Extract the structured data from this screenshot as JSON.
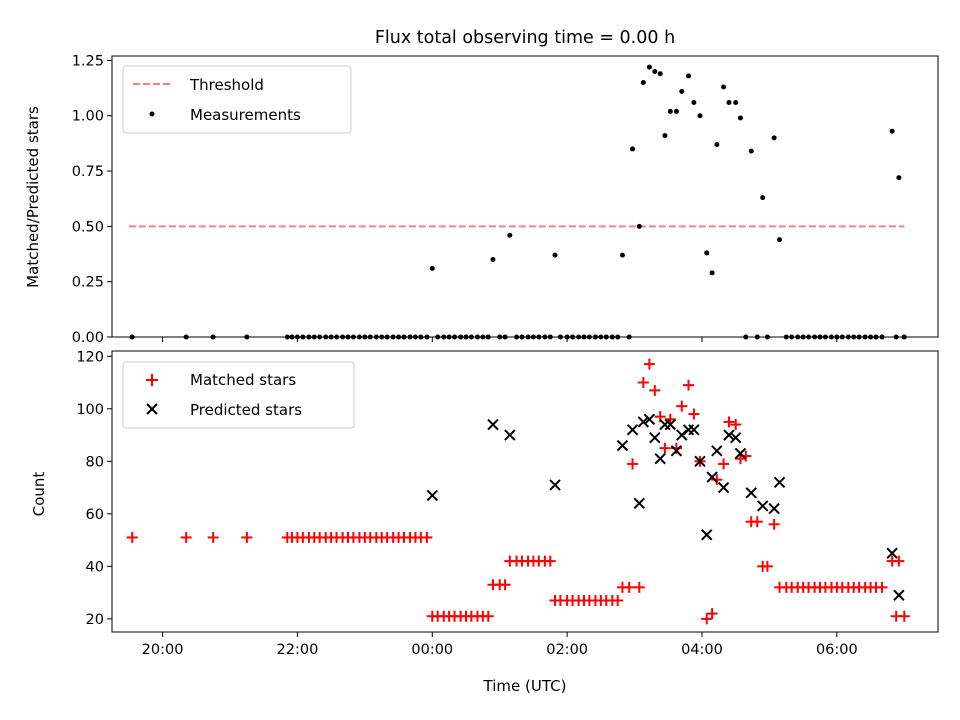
{
  "chart_data": [
    {
      "type": "scatter",
      "title": "Flux total observing time = 0.00 h",
      "xlabel": "",
      "ylabel": "Matched/Predicted stars",
      "xlim": [
        -4.75,
        7.5
      ],
      "ylim": [
        0,
        1.27
      ],
      "y_ticks": [
        "0.00",
        "0.25",
        "0.50",
        "0.75",
        "1.00",
        "1.25"
      ],
      "grid": false,
      "legend_position": "upper-left",
      "threshold": {
        "name": "Threshold",
        "value": 0.5,
        "x_range": [
          -4.5,
          7.0
        ],
        "color": "#ff7f7f"
      },
      "series": [
        {
          "name": "Measurements",
          "color": "#000000",
          "points": [
            [
              -4.45,
              0
            ],
            [
              -3.65,
              0
            ],
            [
              -3.25,
              0
            ],
            [
              -2.75,
              0
            ],
            [
              -2.15,
              0
            ],
            [
              -2.08,
              0
            ],
            [
              -2.0,
              0
            ],
            [
              -1.92,
              0
            ],
            [
              -1.83,
              0
            ],
            [
              -1.75,
              0
            ],
            [
              -1.67,
              0
            ],
            [
              -1.58,
              0
            ],
            [
              -1.5,
              0
            ],
            [
              -1.42,
              0
            ],
            [
              -1.33,
              0
            ],
            [
              -1.25,
              0
            ],
            [
              -1.17,
              0
            ],
            [
              -1.08,
              0
            ],
            [
              -1.0,
              0
            ],
            [
              -0.92,
              0
            ],
            [
              -0.83,
              0
            ],
            [
              -0.75,
              0
            ],
            [
              -0.67,
              0
            ],
            [
              -0.58,
              0
            ],
            [
              -0.5,
              0
            ],
            [
              -0.42,
              0
            ],
            [
              -0.33,
              0
            ],
            [
              -0.25,
              0
            ],
            [
              -0.17,
              0
            ],
            [
              -0.08,
              0
            ],
            [
              0.0,
              0.31
            ],
            [
              0.08,
              0
            ],
            [
              0.17,
              0
            ],
            [
              0.25,
              0
            ],
            [
              0.33,
              0
            ],
            [
              0.42,
              0
            ],
            [
              0.5,
              0
            ],
            [
              0.58,
              0
            ],
            [
              0.67,
              0
            ],
            [
              0.75,
              0
            ],
            [
              0.83,
              0
            ],
            [
              0.9,
              0.35
            ],
            [
              1.0,
              0
            ],
            [
              1.08,
              0
            ],
            [
              1.15,
              0.46
            ],
            [
              1.25,
              0
            ],
            [
              1.33,
              0
            ],
            [
              1.42,
              0
            ],
            [
              1.5,
              0
            ],
            [
              1.58,
              0
            ],
            [
              1.67,
              0
            ],
            [
              1.75,
              0
            ],
            [
              1.82,
              0.37
            ],
            [
              1.9,
              0
            ],
            [
              2.0,
              0
            ],
            [
              2.08,
              0
            ],
            [
              2.17,
              0
            ],
            [
              2.25,
              0
            ],
            [
              2.33,
              0
            ],
            [
              2.42,
              0
            ],
            [
              2.5,
              0
            ],
            [
              2.58,
              0
            ],
            [
              2.67,
              0
            ],
            [
              2.75,
              0
            ],
            [
              2.82,
              0.37
            ],
            [
              2.92,
              0
            ],
            [
              2.97,
              0.85
            ],
            [
              3.07,
              0.5
            ],
            [
              3.13,
              1.15
            ],
            [
              3.22,
              1.22
            ],
            [
              3.3,
              1.2
            ],
            [
              3.38,
              1.19
            ],
            [
              3.45,
              0.91
            ],
            [
              3.53,
              1.02
            ],
            [
              3.62,
              1.02
            ],
            [
              3.7,
              1.11
            ],
            [
              3.8,
              1.18
            ],
            [
              3.88,
              1.06
            ],
            [
              3.97,
              1.0
            ],
            [
              4.07,
              0.38
            ],
            [
              4.15,
              0.29
            ],
            [
              4.22,
              0.87
            ],
            [
              4.32,
              1.13
            ],
            [
              4.4,
              1.06
            ],
            [
              4.5,
              1.06
            ],
            [
              4.57,
              0.99
            ],
            [
              4.65,
              0
            ],
            [
              4.73,
              0.84
            ],
            [
              4.82,
              0
            ],
            [
              4.9,
              0.63
            ],
            [
              4.97,
              0
            ],
            [
              5.07,
              0.9
            ],
            [
              5.15,
              0.44
            ],
            [
              5.25,
              0
            ],
            [
              5.33,
              0
            ],
            [
              5.42,
              0
            ],
            [
              5.5,
              0
            ],
            [
              5.58,
              0
            ],
            [
              5.67,
              0
            ],
            [
              5.75,
              0
            ],
            [
              5.83,
              0
            ],
            [
              5.92,
              0
            ],
            [
              6.0,
              0
            ],
            [
              6.08,
              0
            ],
            [
              6.17,
              0
            ],
            [
              6.25,
              0
            ],
            [
              6.33,
              0
            ],
            [
              6.42,
              0
            ],
            [
              6.5,
              0
            ],
            [
              6.58,
              0
            ],
            [
              6.67,
              0
            ],
            [
              6.82,
              0.93
            ],
            [
              6.88,
              0
            ],
            [
              6.92,
              0.72
            ],
            [
              7.0,
              0
            ]
          ]
        }
      ]
    },
    {
      "type": "scatter",
      "title": "",
      "xlabel": "Time (UTC)",
      "ylabel": "Count",
      "xlim": [
        -4.75,
        7.5
      ],
      "ylim": [
        15,
        122
      ],
      "x_ticks": [
        {
          "value": -4.0,
          "label": "20:00"
        },
        {
          "value": -2.0,
          "label": "22:00"
        },
        {
          "value": 0.0,
          "label": "00:00"
        },
        {
          "value": 2.0,
          "label": "02:00"
        },
        {
          "value": 4.0,
          "label": "04:00"
        },
        {
          "value": 6.0,
          "label": "06:00"
        }
      ],
      "y_ticks": [
        "20",
        "40",
        "60",
        "80",
        "100",
        "120"
      ],
      "grid": false,
      "legend_position": "upper-left",
      "series": [
        {
          "name": "Matched stars",
          "color": "#ff0000",
          "marker": "plus",
          "points": [
            [
              -4.45,
              51
            ],
            [
              -3.65,
              51
            ],
            [
              -3.25,
              51
            ],
            [
              -2.75,
              51
            ],
            [
              -2.15,
              51
            ],
            [
              -2.08,
              51
            ],
            [
              -2.0,
              51
            ],
            [
              -1.92,
              51
            ],
            [
              -1.83,
              51
            ],
            [
              -1.75,
              51
            ],
            [
              -1.67,
              51
            ],
            [
              -1.58,
              51
            ],
            [
              -1.5,
              51
            ],
            [
              -1.42,
              51
            ],
            [
              -1.33,
              51
            ],
            [
              -1.25,
              51
            ],
            [
              -1.17,
              51
            ],
            [
              -1.08,
              51
            ],
            [
              -1.0,
              51
            ],
            [
              -0.92,
              51
            ],
            [
              -0.83,
              51
            ],
            [
              -0.75,
              51
            ],
            [
              -0.67,
              51
            ],
            [
              -0.58,
              51
            ],
            [
              -0.5,
              51
            ],
            [
              -0.42,
              51
            ],
            [
              -0.33,
              51
            ],
            [
              -0.25,
              51
            ],
            [
              -0.17,
              51
            ],
            [
              -0.08,
              51
            ],
            [
              0.0,
              21
            ],
            [
              0.08,
              21
            ],
            [
              0.17,
              21
            ],
            [
              0.25,
              21
            ],
            [
              0.33,
              21
            ],
            [
              0.42,
              21
            ],
            [
              0.5,
              21
            ],
            [
              0.58,
              21
            ],
            [
              0.67,
              21
            ],
            [
              0.75,
              21
            ],
            [
              0.83,
              21
            ],
            [
              0.9,
              33
            ],
            [
              1.0,
              33
            ],
            [
              1.08,
              33
            ],
            [
              1.15,
              42
            ],
            [
              1.25,
              42
            ],
            [
              1.33,
              42
            ],
            [
              1.42,
              42
            ],
            [
              1.5,
              42
            ],
            [
              1.58,
              42
            ],
            [
              1.67,
              42
            ],
            [
              1.75,
              42
            ],
            [
              1.82,
              27
            ],
            [
              1.9,
              27
            ],
            [
              2.0,
              27
            ],
            [
              2.08,
              27
            ],
            [
              2.17,
              27
            ],
            [
              2.25,
              27
            ],
            [
              2.33,
              27
            ],
            [
              2.42,
              27
            ],
            [
              2.5,
              27
            ],
            [
              2.58,
              27
            ],
            [
              2.67,
              27
            ],
            [
              2.75,
              27
            ],
            [
              2.82,
              32
            ],
            [
              2.92,
              32
            ],
            [
              2.97,
              79
            ],
            [
              3.07,
              32
            ],
            [
              3.13,
              110
            ],
            [
              3.22,
              117
            ],
            [
              3.3,
              107
            ],
            [
              3.38,
              97
            ],
            [
              3.45,
              85
            ],
            [
              3.53,
              96
            ],
            [
              3.62,
              85
            ],
            [
              3.7,
              101
            ],
            [
              3.8,
              109
            ],
            [
              3.88,
              98
            ],
            [
              3.97,
              80
            ],
            [
              4.07,
              20
            ],
            [
              4.15,
              22
            ],
            [
              4.22,
              73
            ],
            [
              4.32,
              79
            ],
            [
              4.4,
              95
            ],
            [
              4.5,
              94
            ],
            [
              4.57,
              81
            ],
            [
              4.65,
              82
            ],
            [
              4.73,
              57
            ],
            [
              4.82,
              57
            ],
            [
              4.9,
              40
            ],
            [
              4.97,
              40
            ],
            [
              5.07,
              56
            ],
            [
              5.15,
              32
            ],
            [
              5.25,
              32
            ],
            [
              5.33,
              32
            ],
            [
              5.42,
              32
            ],
            [
              5.5,
              32
            ],
            [
              5.58,
              32
            ],
            [
              5.67,
              32
            ],
            [
              5.75,
              32
            ],
            [
              5.83,
              32
            ],
            [
              5.92,
              32
            ],
            [
              6.0,
              32
            ],
            [
              6.08,
              32
            ],
            [
              6.17,
              32
            ],
            [
              6.25,
              32
            ],
            [
              6.33,
              32
            ],
            [
              6.42,
              32
            ],
            [
              6.5,
              32
            ],
            [
              6.58,
              32
            ],
            [
              6.67,
              32
            ],
            [
              6.82,
              42
            ],
            [
              6.88,
              21
            ],
            [
              6.92,
              42
            ],
            [
              7.0,
              21
            ]
          ]
        },
        {
          "name": "Predicted stars",
          "color": "#000000",
          "marker": "x",
          "points": [
            [
              0.0,
              67
            ],
            [
              0.9,
              94
            ],
            [
              1.15,
              90
            ],
            [
              1.82,
              71
            ],
            [
              2.82,
              86
            ],
            [
              2.97,
              92
            ],
            [
              3.07,
              64
            ],
            [
              3.13,
              95
            ],
            [
              3.22,
              96
            ],
            [
              3.3,
              89
            ],
            [
              3.38,
              81
            ],
            [
              3.45,
              94
            ],
            [
              3.53,
              94
            ],
            [
              3.62,
              84
            ],
            [
              3.7,
              90
            ],
            [
              3.8,
              92
            ],
            [
              3.88,
              92
            ],
            [
              3.97,
              80
            ],
            [
              4.07,
              52
            ],
            [
              4.15,
              74
            ],
            [
              4.22,
              84
            ],
            [
              4.32,
              70
            ],
            [
              4.4,
              90
            ],
            [
              4.5,
              89
            ],
            [
              4.57,
              83
            ],
            [
              4.73,
              68
            ],
            [
              4.9,
              63
            ],
            [
              5.07,
              62
            ],
            [
              5.15,
              72
            ],
            [
              6.82,
              45
            ],
            [
              6.92,
              29
            ]
          ]
        }
      ]
    }
  ]
}
